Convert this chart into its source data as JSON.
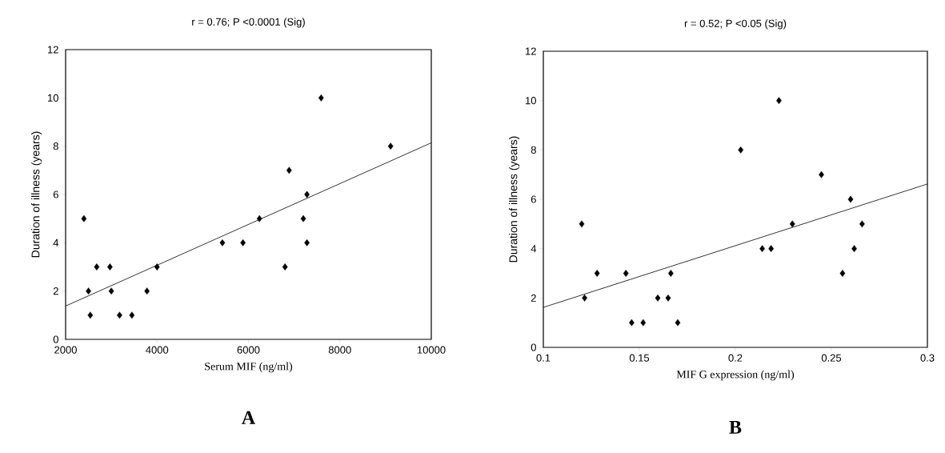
{
  "chart_data": [
    {
      "type": "scatter",
      "title": "r = 0.76; P <0.0001 (Sig)",
      "xlabel": "Serum MIF (ng/ml)",
      "ylabel": "Duration of illness (years)",
      "annotations": [
        "A"
      ],
      "series": [
        {
          "color": "#000000",
          "marker": "diamond",
          "x": [
            2400,
            2500,
            2540,
            2680,
            2970,
            3000,
            3180,
            3450,
            3780,
            4000,
            5430,
            5880,
            6240,
            6800,
            6890,
            7200,
            7280,
            7280,
            7590,
            9110
          ],
          "values": [
            5,
            2,
            1,
            3,
            3,
            2,
            1,
            1,
            2,
            3,
            4,
            4,
            5,
            3,
            7,
            5,
            6,
            4,
            10,
            8
          ]
        },
        {
          "type": "line",
          "color": "#000000",
          "x": [
            2000,
            10000
          ],
          "values": [
            1.38,
            8.14
          ]
        }
      ],
      "xlim": [
        2000,
        10000
      ],
      "xticks": [
        2000,
        4000,
        6000,
        8000,
        10000
      ],
      "ylim": [
        0,
        12
      ],
      "yticks": [
        0,
        2,
        4,
        6,
        8,
        10,
        12
      ],
      "grid": false
    },
    {
      "type": "scatter",
      "title": "r = 0.52; P <0.05 (Sig)",
      "xlabel": "MIF G expression (ng/ml)",
      "ylabel": "Duration of illness (years)",
      "annotations": [
        "B"
      ],
      "series": [
        {
          "color": "#000000",
          "marker": "diamond",
          "x": [
            0.12,
            0.1215,
            0.128,
            0.143,
            0.146,
            0.152,
            0.1596,
            0.165,
            0.1664,
            0.17,
            0.2028,
            0.214,
            0.2186,
            0.2227,
            0.2297,
            0.2448,
            0.2558,
            0.26,
            0.2619,
            0.266
          ],
          "values": [
            5,
            2,
            3,
            3,
            1,
            1,
            2,
            2,
            3,
            1,
            8,
            4,
            4,
            10,
            5,
            7,
            3,
            6,
            4,
            5
          ]
        },
        {
          "type": "line",
          "color": "#000000",
          "x": [
            0.1,
            0.3
          ],
          "values": [
            1.62,
            6.62
          ]
        }
      ],
      "xlim": [
        0.1,
        0.3
      ],
      "xticks": [
        0.1,
        0.15,
        0.2,
        0.25,
        0.3
      ],
      "ylim": [
        0,
        12
      ],
      "yticks": [
        0,
        2,
        4,
        6,
        8,
        10,
        12
      ],
      "grid": false
    }
  ]
}
